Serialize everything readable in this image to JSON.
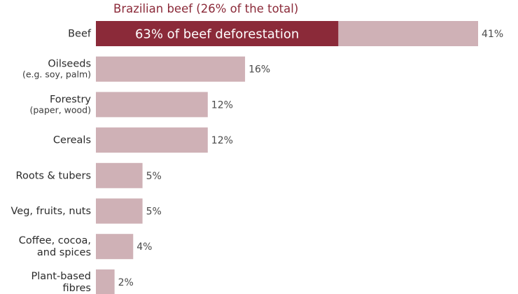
{
  "chart_data": {
    "type": "bar",
    "orientation": "horizontal",
    "title": "",
    "xlabel": "",
    "ylabel": "",
    "xlim": [
      0,
      41
    ],
    "grid": false,
    "annotation": "Brazilian beef (26% of the total)",
    "categories": [
      {
        "label": "Beef",
        "sublabel": ""
      },
      {
        "label": "Oilseeds",
        "sublabel": "(e.g. soy, palm)"
      },
      {
        "label": "Forestry",
        "sublabel": "(paper, wood)"
      },
      {
        "label": "Cereals",
        "sublabel": ""
      },
      {
        "label": "Roots & tubers",
        "sublabel": ""
      },
      {
        "label": "Veg, fruits, nuts",
        "sublabel": ""
      },
      {
        "label": "Coffee, cocoa,\nand spices",
        "sublabel": ""
      },
      {
        "label": "Plant-based\nfibres",
        "sublabel": ""
      }
    ],
    "values": [
      41,
      16,
      12,
      12,
      5,
      5,
      4,
      2
    ],
    "value_labels": [
      "41%",
      "16%",
      "12%",
      "12%",
      "5%",
      "5%",
      "4%",
      "2%"
    ],
    "highlight": {
      "category_index": 0,
      "value": 26,
      "label": "63% of beef deforestation"
    },
    "colors": {
      "bar": "#cfb1b6",
      "highlight": "#8b2a39",
      "annotation": "#8b2a39",
      "text": "#2b2b2b"
    }
  }
}
